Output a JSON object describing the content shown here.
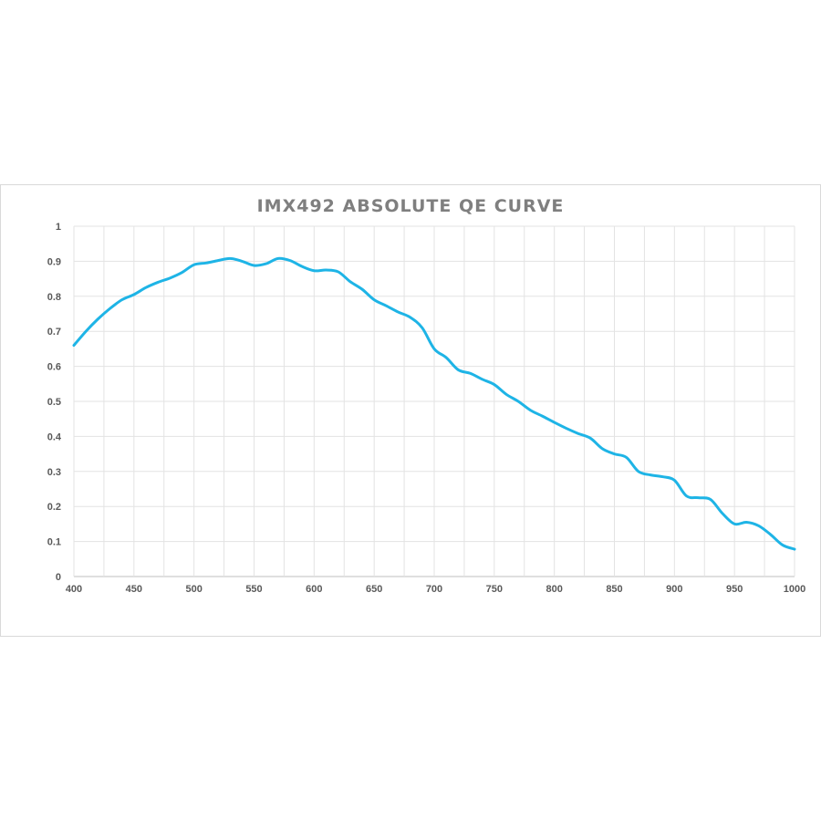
{
  "chart_data": {
    "type": "line",
    "title": "IMX492 ABSOLUTE QE CURVE",
    "xlabel": "",
    "ylabel": "",
    "xlim": [
      400,
      1000
    ],
    "ylim": [
      0,
      1
    ],
    "grid": true,
    "legend": "none",
    "x_ticks": [
      "400",
      "450",
      "500",
      "550",
      "600",
      "650",
      "700",
      "750",
      "800",
      "850",
      "900",
      "950",
      "1000"
    ],
    "y_ticks": [
      "0",
      "0.1",
      "0.2",
      "0.3",
      "0.4",
      "0.5",
      "0.6",
      "0.7",
      "0.8",
      "0.9",
      "1"
    ],
    "series": [
      {
        "color": "#1eb4e6",
        "x": [
          400,
          410,
          420,
          430,
          440,
          450,
          460,
          470,
          480,
          490,
          500,
          510,
          520,
          530,
          540,
          550,
          560,
          570,
          580,
          590,
          600,
          610,
          620,
          630,
          640,
          650,
          660,
          670,
          680,
          690,
          700,
          710,
          720,
          730,
          740,
          750,
          760,
          770,
          780,
          790,
          800,
          810,
          820,
          830,
          840,
          850,
          860,
          870,
          880,
          890,
          900,
          910,
          920,
          930,
          940,
          950,
          960,
          970,
          980,
          990,
          1000
        ],
        "y": [
          0.66,
          0.7,
          0.735,
          0.765,
          0.79,
          0.805,
          0.825,
          0.84,
          0.852,
          0.868,
          0.89,
          0.895,
          0.902,
          0.908,
          0.9,
          0.888,
          0.893,
          0.908,
          0.902,
          0.885,
          0.873,
          0.875,
          0.87,
          0.842,
          0.82,
          0.79,
          0.773,
          0.755,
          0.74,
          0.71,
          0.65,
          0.625,
          0.59,
          0.58,
          0.563,
          0.548,
          0.52,
          0.5,
          0.475,
          0.458,
          0.44,
          0.423,
          0.408,
          0.395,
          0.365,
          0.35,
          0.34,
          0.3,
          0.29,
          0.285,
          0.275,
          0.23,
          0.225,
          0.22,
          0.18,
          0.15,
          0.155,
          0.145,
          0.12,
          0.09,
          0.078
        ]
      }
    ]
  }
}
